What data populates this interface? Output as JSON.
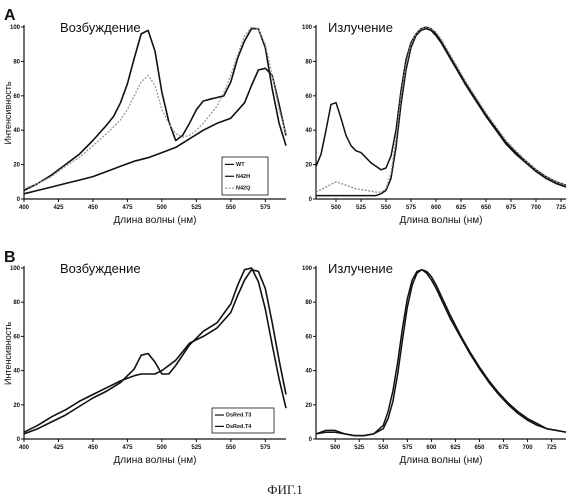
{
  "figure_caption": "ФИГ.1",
  "panel_labels": {
    "A": "A",
    "B": "B"
  },
  "chart_data": [
    {
      "id": "A_excitation",
      "type": "line",
      "title": "Возбуждение",
      "xlabel": "Длина волны (нм)",
      "ylabel": "Интенсивность",
      "xlim": [
        400,
        590
      ],
      "ylim": [
        0,
        100
      ],
      "xticks": [
        "400",
        "425",
        "450",
        "475",
        "500",
        "525",
        "550",
        "575"
      ],
      "yticks": [
        "0",
        "20",
        "40",
        "60",
        "80",
        "100"
      ],
      "legend_position": "bottom-right",
      "series": [
        {
          "name": "WT",
          "color": "#111111",
          "width": 1.6,
          "x": [
            400,
            410,
            420,
            430,
            440,
            450,
            460,
            465,
            470,
            475,
            480,
            485,
            490,
            495,
            500,
            505,
            510,
            515,
            520,
            525,
            530,
            535,
            540,
            545,
            550,
            555,
            560,
            565,
            570,
            575,
            580,
            585,
            590
          ],
          "y": [
            5,
            9,
            14,
            20,
            26,
            34,
            43,
            48,
            56,
            67,
            82,
            96,
            98,
            86,
            62,
            45,
            34,
            37,
            44,
            52,
            57,
            58,
            59,
            60,
            68,
            82,
            92,
            99,
            99,
            88,
            64,
            44,
            31
          ]
        },
        {
          "name": "N42H",
          "color": "#111111",
          "width": 1.6,
          "x": [
            400,
            410,
            420,
            430,
            440,
            450,
            460,
            470,
            480,
            490,
            500,
            510,
            520,
            530,
            540,
            550,
            560,
            565,
            570,
            575,
            580,
            585,
            590
          ],
          "y": [
            3,
            5,
            7,
            9,
            11,
            13,
            16,
            19,
            22,
            24,
            27,
            30,
            35,
            40,
            44,
            47,
            56,
            66,
            75,
            76,
            72,
            55,
            37
          ]
        },
        {
          "name": "N42Q",
          "color": "#9a9a9a",
          "width": 1.3,
          "dash": "2 1.5",
          "x": [
            400,
            410,
            420,
            430,
            440,
            450,
            460,
            470,
            475,
            480,
            485,
            490,
            495,
            500,
            505,
            510,
            515,
            520,
            525,
            530,
            535,
            540,
            545,
            550,
            555,
            560,
            565,
            570,
            575,
            580,
            585,
            590
          ],
          "y": [
            6,
            9,
            13,
            19,
            24,
            31,
            38,
            46,
            52,
            60,
            68,
            72,
            66,
            52,
            44,
            38,
            36,
            37,
            40,
            44,
            49,
            54,
            62,
            72,
            84,
            95,
            100,
            99,
            90,
            72,
            52,
            38
          ]
        }
      ]
    },
    {
      "id": "A_emission",
      "type": "line",
      "title": "Излучение",
      "xlabel": "Длина волны (нм)",
      "ylabel": "",
      "xlim": [
        480,
        730
      ],
      "ylim": [
        0,
        100
      ],
      "xticks": [
        "500",
        "525",
        "550",
        "575",
        "600",
        "625",
        "650",
        "675",
        "700",
        "725"
      ],
      "yticks": [
        "0",
        "20",
        "40",
        "60",
        "80",
        "100"
      ],
      "series": [
        {
          "name": "WT",
          "color": "#111111",
          "width": 1.5,
          "x": [
            480,
            485,
            490,
            495,
            500,
            505,
            510,
            515,
            520,
            525,
            530,
            535,
            540,
            545,
            550,
            555,
            560,
            565,
            570,
            575,
            580,
            585,
            590,
            595,
            600,
            605,
            610,
            615,
            620,
            630,
            640,
            650,
            660,
            670,
            680,
            690,
            700,
            710,
            720,
            730
          ],
          "y": [
            19,
            26,
            40,
            55,
            56,
            47,
            37,
            31,
            28,
            27,
            24,
            21,
            19,
            17,
            18,
            25,
            40,
            63,
            81,
            91,
            96,
            99,
            100,
            99,
            96,
            92,
            87,
            82,
            77,
            67,
            58,
            49,
            41,
            33,
            27,
            22,
            17,
            13,
            10,
            8
          ]
        },
        {
          "name": "N42H",
          "color": "#111111",
          "width": 1.5,
          "x": [
            480,
            490,
            500,
            510,
            520,
            530,
            540,
            545,
            550,
            555,
            560,
            565,
            570,
            575,
            580,
            585,
            590,
            595,
            600,
            605,
            610,
            615,
            620,
            630,
            640,
            650,
            660,
            670,
            680,
            690,
            700,
            710,
            720,
            730
          ],
          "y": [
            2,
            2,
            2,
            2,
            2,
            2,
            2,
            3,
            5,
            12,
            30,
            55,
            75,
            88,
            95,
            98,
            99,
            98,
            95,
            91,
            86,
            81,
            76,
            66,
            57,
            48,
            40,
            32,
            26,
            21,
            16,
            12,
            9,
            7
          ]
        },
        {
          "name": "N42Q",
          "color": "#8a8a8a",
          "width": 1.3,
          "dash": "2 1.5",
          "x": [
            480,
            490,
            500,
            510,
            520,
            530,
            540,
            545,
            550,
            555,
            560,
            565,
            570,
            575,
            580,
            585,
            590,
            595,
            600,
            605,
            610,
            615,
            620,
            630,
            640,
            650,
            660,
            670,
            680,
            690,
            700,
            710,
            720,
            730
          ],
          "y": [
            4,
            7,
            10,
            8,
            6,
            5,
            4,
            4,
            6,
            15,
            35,
            60,
            78,
            90,
            96,
            99,
            100,
            99,
            97,
            93,
            88,
            83,
            78,
            68,
            59,
            50,
            42,
            34,
            28,
            22,
            17,
            13,
            10,
            8
          ]
        }
      ]
    },
    {
      "id": "B_excitation",
      "type": "line",
      "title": "Возбуждение",
      "xlabel": "Длина волны (нм)",
      "ylabel": "Интенсивность",
      "xlim": [
        400,
        590
      ],
      "ylim": [
        0,
        100
      ],
      "xticks": [
        "400",
        "425",
        "450",
        "475",
        "500",
        "525",
        "550",
        "575"
      ],
      "yticks": [
        "0",
        "20",
        "40",
        "60",
        "80",
        "100"
      ],
      "legend_position": "bottom-right",
      "series": [
        {
          "name": "DsRed.T3",
          "color": "#111111",
          "width": 1.6,
          "x": [
            400,
            410,
            420,
            430,
            440,
            450,
            460,
            470,
            480,
            485,
            490,
            495,
            500,
            505,
            510,
            520,
            530,
            540,
            550,
            555,
            560,
            565,
            570,
            575,
            580,
            585,
            590
          ],
          "y": [
            3,
            6,
            10,
            14,
            19,
            24,
            28,
            33,
            41,
            49,
            50,
            45,
            38,
            38,
            43,
            55,
            63,
            68,
            79,
            90,
            99,
            100,
            92,
            76,
            55,
            35,
            18
          ]
        },
        {
          "name": "DsRed.T4",
          "color": "#111111",
          "width": 1.6,
          "x": [
            400,
            410,
            420,
            430,
            440,
            450,
            460,
            470,
            480,
            485,
            490,
            495,
            500,
            510,
            520,
            530,
            540,
            550,
            555,
            560,
            565,
            570,
            575,
            580,
            585,
            590
          ],
          "y": [
            4,
            8,
            13,
            17,
            22,
            26,
            30,
            34,
            37,
            38,
            38,
            38,
            40,
            46,
            56,
            60,
            65,
            74,
            84,
            93,
            99,
            98,
            88,
            68,
            46,
            26
          ]
        }
      ]
    },
    {
      "id": "B_emission",
      "type": "line",
      "title": "Излучение",
      "xlabel": "Длина волны (нм)",
      "ylabel": "",
      "xlim": [
        480,
        740
      ],
      "ylim": [
        0,
        100
      ],
      "xticks": [
        "500",
        "525",
        "550",
        "575",
        "600",
        "625",
        "650",
        "675",
        "700",
        "725"
      ],
      "yticks": [
        "0",
        "20",
        "40",
        "60",
        "80",
        "100"
      ],
      "series": [
        {
          "name": "DsRed.T3",
          "color": "#111111",
          "width": 1.5,
          "x": [
            480,
            490,
            500,
            510,
            520,
            530,
            540,
            550,
            555,
            560,
            565,
            570,
            575,
            580,
            585,
            590,
            595,
            600,
            605,
            610,
            620,
            630,
            640,
            650,
            660,
            670,
            680,
            690,
            700,
            710,
            720,
            730,
            740
          ],
          "y": [
            3,
            5,
            5,
            3,
            2,
            2,
            3,
            8,
            16,
            28,
            45,
            65,
            82,
            93,
            98,
            99,
            97,
            93,
            88,
            82,
            70,
            60,
            50,
            41,
            33,
            26,
            20,
            15,
            11,
            8,
            6,
            5,
            4
          ]
        },
        {
          "name": "DsRed.T4",
          "color": "#111111",
          "width": 1.5,
          "x": [
            480,
            490,
            500,
            510,
            520,
            530,
            540,
            550,
            555,
            560,
            565,
            570,
            575,
            580,
            585,
            590,
            595,
            600,
            605,
            610,
            620,
            630,
            640,
            650,
            660,
            670,
            680,
            690,
            700,
            710,
            720,
            730,
            740
          ],
          "y": [
            3,
            4,
            4,
            3,
            2,
            2,
            3,
            6,
            12,
            22,
            38,
            58,
            77,
            90,
            97,
            99,
            98,
            95,
            90,
            84,
            72,
            61,
            51,
            42,
            34,
            27,
            21,
            16,
            12,
            9,
            6,
            5,
            4
          ]
        }
      ]
    }
  ]
}
